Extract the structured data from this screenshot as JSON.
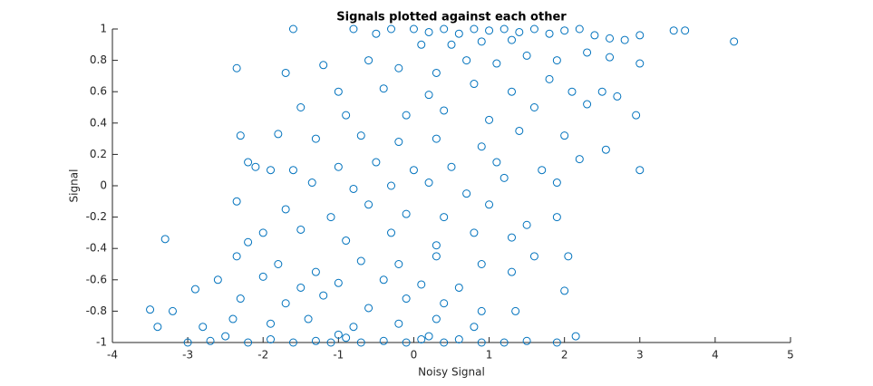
{
  "chart_data": {
    "type": "scatter",
    "title": "Signals plotted against each other",
    "xlabel": "Noisy Signal",
    "ylabel": "Signal",
    "color": "#0072bd",
    "xlim": [
      -4,
      5
    ],
    "xticks": [
      -4,
      -3,
      -2,
      -1,
      0,
      1,
      2,
      3,
      4,
      5
    ],
    "ylim": [
      -1,
      1
    ],
    "yticks": [
      -1,
      -0.8,
      -0.6,
      -0.4,
      -0.2,
      0,
      0.2,
      0.4,
      0.6,
      0.8,
      1
    ],
    "series": [
      {
        "name": "Signal",
        "color": "#0072bd",
        "x": [
          -1.6,
          -0.8,
          -0.3,
          0,
          0.2,
          0.4,
          0.6,
          0.8,
          1,
          1.2,
          1.4,
          1.6,
          1.8,
          2.0,
          2.2,
          2.4,
          2.6,
          2.8,
          3.0,
          3.45,
          3.6,
          4.25,
          0.5,
          0.9,
          1.3,
          -0.5,
          0.1,
          -2.35,
          -1.7,
          -1.2,
          -0.6,
          -0.2,
          0.3,
          0.7,
          1.1,
          1.5,
          1.9,
          2.3,
          2.6,
          3.0,
          -1.0,
          -0.4,
          0.2,
          0.8,
          1.3,
          1.8,
          2.1,
          2.5,
          2.7,
          -1.5,
          -0.9,
          -0.1,
          0.4,
          1.0,
          1.6,
          2.3,
          2.95,
          -2.3,
          -1.8,
          -1.3,
          -0.7,
          -0.2,
          0.3,
          0.9,
          1.4,
          2.0,
          2.55,
          -2.2,
          -1.6,
          -1.0,
          -0.5,
          0.0,
          0.5,
          1.1,
          1.7,
          2.2,
          3.0,
          -2.1,
          -1.9,
          -1.35,
          -0.8,
          -0.3,
          0.2,
          0.7,
          1.2,
          1.9,
          -2.35,
          -1.7,
          -1.1,
          -0.6,
          -0.1,
          0.4,
          1.0,
          1.5,
          1.9,
          -2.0,
          -1.5,
          -0.9,
          -0.3,
          0.3,
          0.8,
          1.3,
          -3.3,
          -2.2,
          -2.35,
          -1.8,
          -1.3,
          -0.7,
          -0.2,
          0.3,
          0.9,
          1.6,
          2.05,
          -2.6,
          -2.0,
          -1.5,
          -1.0,
          -0.4,
          0.1,
          0.6,
          1.3,
          1.35,
          2.0,
          -3.5,
          -3.2,
          -2.9,
          -2.3,
          -1.7,
          -1.2,
          -0.6,
          -0.1,
          0.4,
          0.9,
          -3.4,
          -2.8,
          -2.4,
          -1.9,
          -1.4,
          -0.8,
          -0.2,
          0.3,
          0.8,
          2.15,
          -3.0,
          -2.7,
          -2.2,
          -1.9,
          -1.6,
          -1.3,
          -1.1,
          -0.9,
          -0.7,
          -0.4,
          -0.1,
          0.1,
          0.4,
          0.6,
          0.9,
          1.2,
          1.5,
          1.9,
          -2.5,
          -1.0,
          0.2
        ],
        "values": [
          1,
          1,
          1,
          1,
          0.98,
          1,
          0.97,
          1,
          0.99,
          1,
          0.98,
          1,
          0.97,
          0.99,
          1,
          0.96,
          0.94,
          0.93,
          0.96,
          0.99,
          0.99,
          0.92,
          0.9,
          0.92,
          0.93,
          0.97,
          0.9,
          0.75,
          0.72,
          0.77,
          0.8,
          0.75,
          0.72,
          0.8,
          0.78,
          0.83,
          0.8,
          0.85,
          0.82,
          0.78,
          0.6,
          0.62,
          0.58,
          0.65,
          0.6,
          0.68,
          0.6,
          0.6,
          0.57,
          0.5,
          0.45,
          0.45,
          0.48,
          0.42,
          0.5,
          0.52,
          0.45,
          0.32,
          0.33,
          0.3,
          0.32,
          0.28,
          0.3,
          0.25,
          0.35,
          0.32,
          0.23,
          0.15,
          0.1,
          0.12,
          0.15,
          0.1,
          0.12,
          0.15,
          0.1,
          0.17,
          0.1,
          0.12,
          0.1,
          0.02,
          -0.02,
          0,
          0.02,
          -0.05,
          0.05,
          0.02,
          -0.1,
          -0.15,
          -0.2,
          -0.12,
          -0.18,
          -0.2,
          -0.12,
          -0.25,
          -0.2,
          -0.3,
          -0.28,
          -0.35,
          -0.3,
          -0.38,
          -0.3,
          -0.33,
          -0.34,
          -0.36,
          -0.45,
          -0.5,
          -0.55,
          -0.48,
          -0.5,
          -0.45,
          -0.5,
          -0.45,
          -0.45,
          -0.6,
          -0.58,
          -0.65,
          -0.62,
          -0.6,
          -0.63,
          -0.65,
          -0.55,
          -0.8,
          -0.67,
          -0.79,
          -0.8,
          -0.66,
          -0.72,
          -0.75,
          -0.7,
          -0.78,
          -0.72,
          -0.75,
          -0.8,
          -0.9,
          -0.9,
          -0.85,
          -0.88,
          -0.85,
          -0.9,
          -0.88,
          -0.85,
          -0.9,
          -0.96,
          -1,
          -0.99,
          -1,
          -0.98,
          -1,
          -0.99,
          -1,
          -0.97,
          -1,
          -0.99,
          -1,
          -0.98,
          -1,
          -0.98,
          -1,
          -1,
          -0.99,
          -1,
          -0.96,
          -0.95,
          -0.96
        ]
      }
    ]
  }
}
